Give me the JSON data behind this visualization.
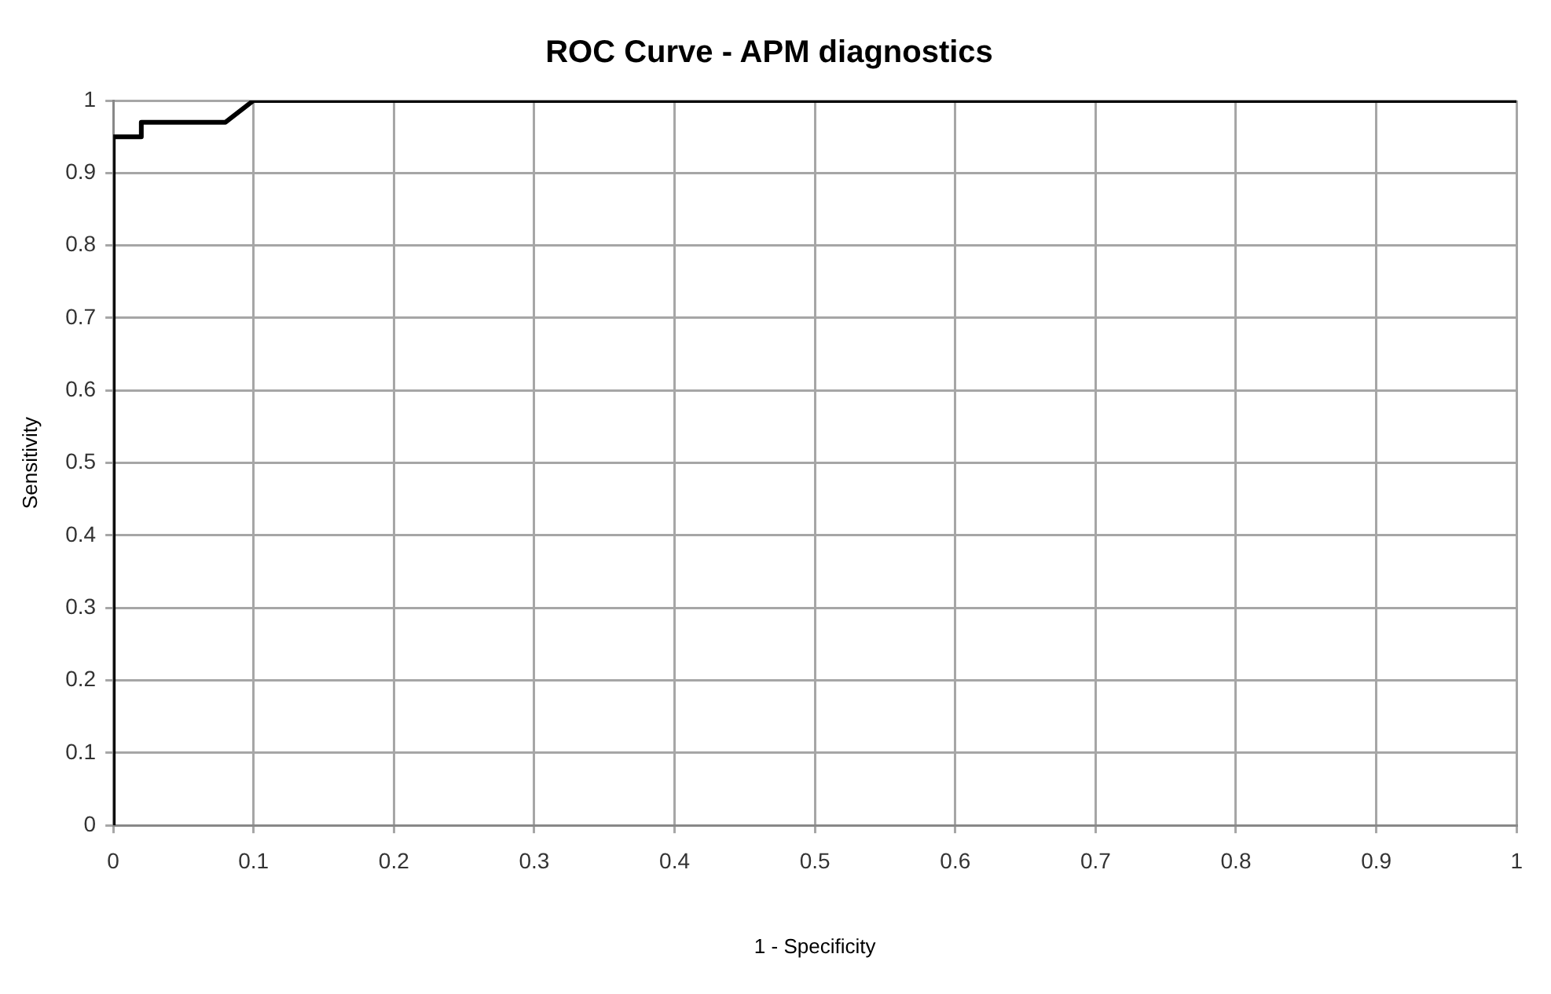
{
  "chart_data": {
    "type": "line",
    "title": "ROC Curve - APM diagnostics",
    "xlabel": "1 - Specificity",
    "ylabel": "Sensitivity",
    "series": [
      {
        "color": "#000000",
        "x": [
          0,
          0,
          0.02,
          0.02,
          0.08,
          0.1,
          1
        ],
        "values": [
          0,
          0.95,
          0.95,
          0.97,
          0.97,
          1,
          1
        ]
      }
    ],
    "xlim": [
      0,
      1
    ],
    "ylim": [
      0,
      1
    ],
    "xticks": [
      0,
      0.1,
      0.2,
      0.3,
      0.4,
      0.5,
      0.6,
      0.7,
      0.8,
      0.9,
      1
    ],
    "yticks": [
      0,
      0.1,
      0.2,
      0.3,
      0.4,
      0.5,
      0.6,
      0.7,
      0.8,
      0.9,
      1
    ],
    "grid": true,
    "legend": false,
    "marker": "none",
    "line_style": "solid"
  }
}
